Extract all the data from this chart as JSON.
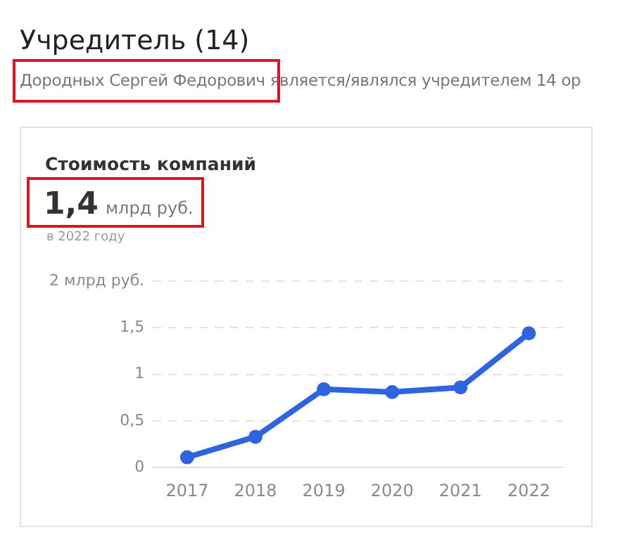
{
  "chart_data": {
    "type": "line",
    "title": "Стоимость компаний",
    "annotations": [
      "Учредитель (14)",
      "Дородных Сергей Федорович является/являлся учредителем 14 ор",
      "1,4 млрд руб.",
      "в 2022 году"
    ],
    "categories": [
      "2017",
      "2018",
      "2019",
      "2020",
      "2021",
      "2022"
    ],
    "series": [
      {
        "color": "#2f64e0",
        "values": [
          0.11,
          0.33,
          0.84,
          0.81,
          0.86,
          1.44
        ]
      }
    ],
    "ylim": [
      0,
      2
    ],
    "yticks": [
      0,
      {
        "value": 0.5,
        "label": "0,5"
      },
      1,
      {
        "value": 1.5,
        "label": "1,5"
      },
      {
        "value": 2,
        "label": "2 млрд руб."
      }
    ],
    "grid": "y",
    "legend": false,
    "marker": "circle",
    "line_style": "solid"
  }
}
